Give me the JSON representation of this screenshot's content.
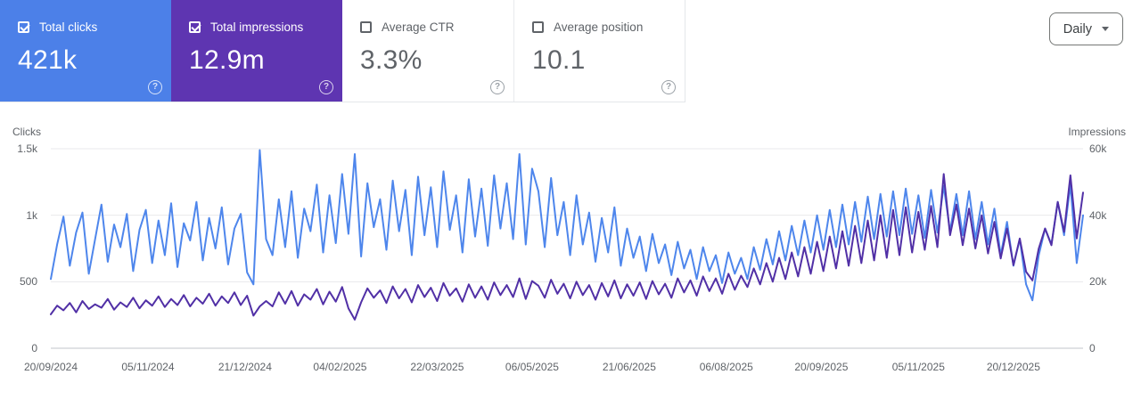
{
  "metrics_cards": {
    "help_icon": "?",
    "cards": [
      {
        "label": "Total clicks",
        "value": "421k",
        "checked": true
      },
      {
        "label": "Total impressions",
        "value": "12.9m",
        "checked": true
      },
      {
        "label": "Average CTR",
        "value": "3.3%",
        "checked": false
      },
      {
        "label": "Average position",
        "value": "10.1",
        "checked": false
      }
    ]
  },
  "controls": {
    "granularity_label": "Daily"
  },
  "colors": {
    "clicks_blue": "#4c80e8",
    "impressions_purple": "#5e35b1",
    "clicks_line": "#4e86ec",
    "impressions_line": "#5130a6",
    "gridline": "#e9eaec",
    "axis_line": "#c2c6cb"
  },
  "chart_data": {
    "type": "line",
    "granularity": "Daily",
    "left_axis_label": "Clicks",
    "right_axis_label": "Impressions",
    "left_ticks": [
      {
        "label": "1.5k",
        "value": 1500
      },
      {
        "label": "1k",
        "value": 1000
      },
      {
        "label": "500",
        "value": 500
      },
      {
        "label": "0",
        "value": 0
      }
    ],
    "right_ticks": [
      {
        "label": "60k",
        "value": 60000
      },
      {
        "label": "40k",
        "value": 40000
      },
      {
        "label": "20k",
        "value": 20000
      },
      {
        "label": "0",
        "value": 0
      }
    ],
    "left_max": 1500,
    "right_max": 60000,
    "x_ticks": [
      {
        "label": "20/09/2024",
        "day": 0
      },
      {
        "label": "05/11/2024",
        "day": 46
      },
      {
        "label": "21/12/2024",
        "day": 92
      },
      {
        "label": "04/02/2025",
        "day": 137
      },
      {
        "label": "22/03/2025",
        "day": 183
      },
      {
        "label": "06/05/2025",
        "day": 228
      },
      {
        "label": "21/06/2025",
        "day": 274
      },
      {
        "label": "06/08/2025",
        "day": 320
      },
      {
        "label": "20/09/2025",
        "day": 365
      },
      {
        "label": "05/11/2025",
        "day": 411
      },
      {
        "label": "20/12/2025",
        "day": 456
      }
    ],
    "total_days": 489,
    "interval_days": 3,
    "series": [
      {
        "name": "Total clicks",
        "axis": "left",
        "values": [
          520,
          780,
          990,
          620,
          870,
          1020,
          560,
          820,
          1080,
          650,
          930,
          760,
          1010,
          580,
          890,
          1040,
          640,
          960,
          700,
          1090,
          610,
          940,
          810,
          1100,
          660,
          980,
          750,
          1060,
          630,
          900,
          1010,
          570,
          480,
          1490,
          820,
          700,
          1120,
          760,
          1180,
          680,
          1050,
          880,
          1230,
          720,
          1150,
          790,
          1310,
          860,
          1460,
          690,
          1240,
          910,
          1120,
          740,
          1260,
          880,
          1190,
          700,
          1290,
          850,
          1210,
          760,
          1330,
          890,
          1150,
          720,
          1270,
          840,
          1200,
          770,
          1300,
          900,
          1240,
          820,
          1460,
          780,
          1350,
          1180,
          760,
          1280,
          850,
          1100,
          700,
          1150,
          780,
          1020,
          650,
          980,
          720,
          1060,
          620,
          900,
          680,
          840,
          580,
          860,
          640,
          780,
          550,
          800,
          600,
          740,
          520,
          760,
          580,
          700,
          490,
          720,
          560,
          680,
          520,
          760,
          590,
          820,
          630,
          880,
          660,
          920,
          700,
          960,
          720,
          1000,
          740,
          1040,
          760,
          1080,
          780,
          1100,
          800,
          1140,
          820,
          1160,
          840,
          1180,
          850,
          1200,
          860,
          1150,
          830,
          1190,
          870,
          1220,
          880,
          1160,
          850,
          1180,
          820,
          1100,
          780,
          1050,
          700,
          950,
          620,
          820,
          480,
          360,
          700,
          900,
          780,
          1100,
          850,
          1230,
          640,
          1000
        ]
      },
      {
        "name": "Total impressions",
        "axis": "right",
        "values": [
          10200,
          12800,
          11400,
          13600,
          10800,
          14200,
          11800,
          13200,
          12200,
          14800,
          11600,
          13800,
          12400,
          15200,
          12000,
          14400,
          12800,
          15600,
          12400,
          14800,
          13000,
          16000,
          12600,
          15200,
          13400,
          16400,
          12800,
          15600,
          13600,
          16800,
          13000,
          15800,
          9800,
          12600,
          14200,
          12600,
          16800,
          13400,
          17200,
          12800,
          16200,
          14600,
          17800,
          13200,
          17000,
          14000,
          18400,
          12000,
          8600,
          13800,
          18000,
          15200,
          17400,
          13600,
          18600,
          15000,
          17800,
          13800,
          19000,
          15400,
          18200,
          14200,
          19600,
          15800,
          18000,
          14000,
          19200,
          15200,
          18600,
          14600,
          19800,
          16000,
          19000,
          15400,
          21000,
          14800,
          20200,
          18800,
          15200,
          20600,
          16400,
          19400,
          15000,
          20000,
          16000,
          19000,
          14600,
          19600,
          15600,
          20400,
          15000,
          19200,
          15800,
          19800,
          14800,
          20200,
          16200,
          19400,
          15200,
          21000,
          16800,
          20400,
          15800,
          21600,
          17200,
          21000,
          16400,
          22400,
          17600,
          21800,
          18400,
          24000,
          19200,
          25600,
          20000,
          27200,
          20800,
          28800,
          21600,
          30400,
          22400,
          32000,
          23200,
          33600,
          24000,
          35200,
          24800,
          36800,
          25600,
          38400,
          26400,
          40000,
          27200,
          41600,
          28000,
          42400,
          28800,
          41000,
          29600,
          42800,
          30400,
          52400,
          34000,
          43200,
          31000,
          42000,
          30000,
          40000,
          28500,
          38000,
          27000,
          36000,
          25000,
          33000,
          23000,
          20400,
          30000,
          36000,
          31000,
          44000,
          35000,
          52000,
          33000,
          46800
        ]
      }
    ]
  }
}
